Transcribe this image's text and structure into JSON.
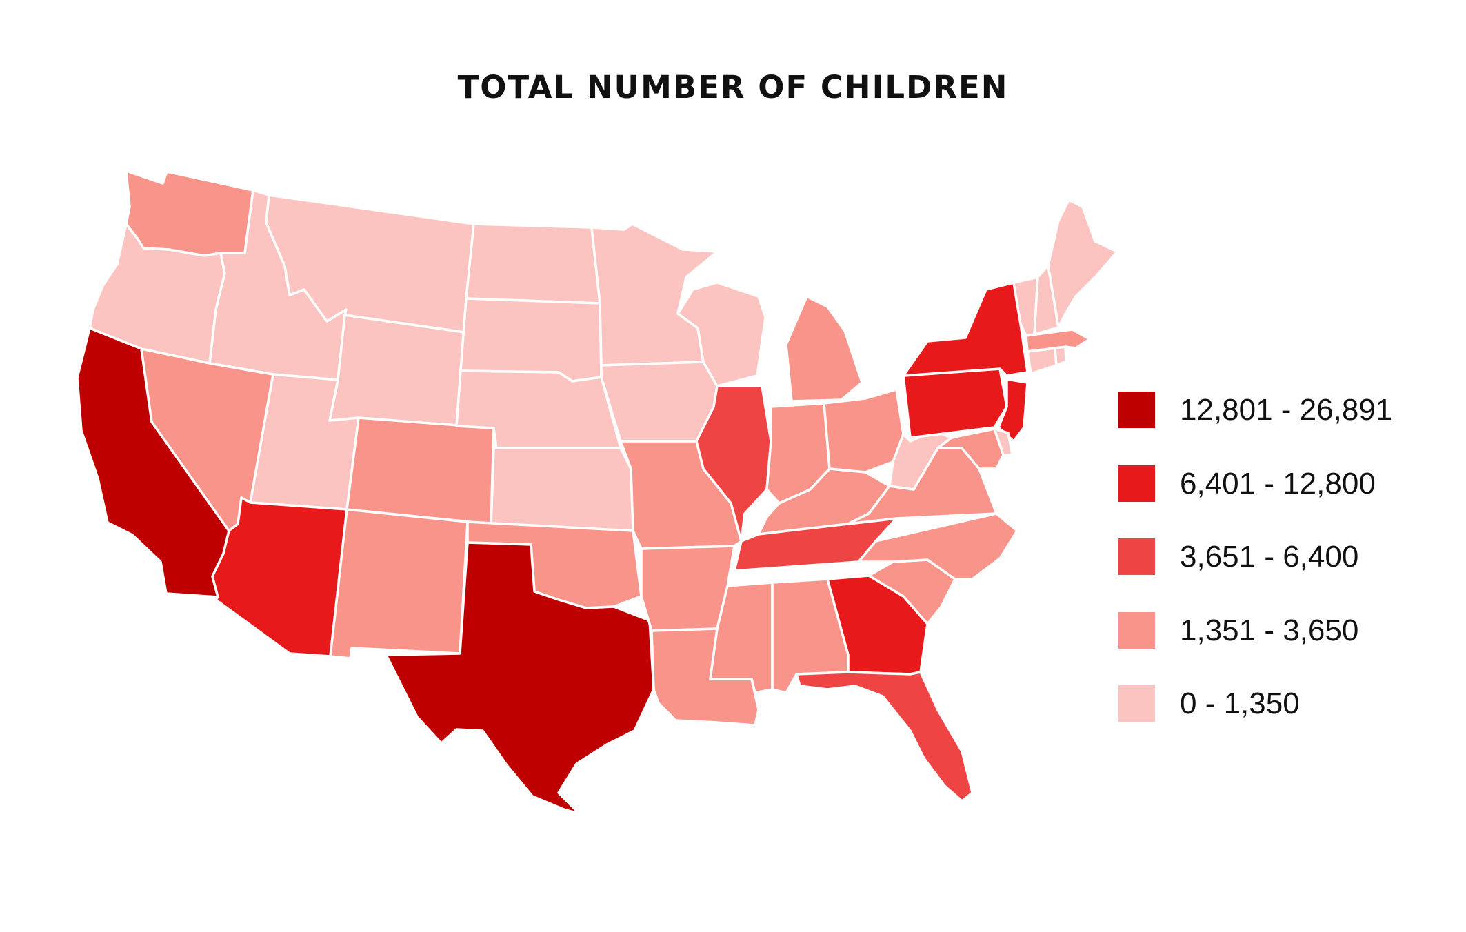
{
  "title": "TOTAL NUMBER OF CHILDREN",
  "colors": {
    "c1": "#bf0000",
    "c2": "#e8191b",
    "c3": "#ee4444",
    "c4": "#f9948a",
    "c5": "#fcc4c0",
    "border": "#ffffff"
  },
  "legend": [
    {
      "label": "12,801 - 26,891",
      "color": "#bf0000",
      "class": "c1"
    },
    {
      "label": "6,401 - 12,800",
      "color": "#e8191b",
      "class": "c2"
    },
    {
      "label": "3,651 - 6,400",
      "color": "#ee4444",
      "class": "c3"
    },
    {
      "label": "1,351 - 3,650",
      "color": "#f9948a",
      "class": "c4"
    },
    {
      "label": "0 - 1,350",
      "color": "#fcc4c0",
      "class": "c5"
    }
  ],
  "states": {
    "CA": "c1",
    "TX": "c1",
    "AZ": "c2",
    "NY": "c2",
    "PA": "c2",
    "NJ": "c2",
    "GA": "c2",
    "IL": "c3",
    "FL": "c3",
    "TN": "c3",
    "WA": "c4",
    "NV": "c4",
    "CO": "c4",
    "NM": "c4",
    "OK": "c4",
    "MO": "c4",
    "AR": "c4",
    "LA": "c4",
    "MS": "c4",
    "AL": "c4",
    "MI": "c4",
    "IN": "c4",
    "OH": "c4",
    "KY": "c4",
    "VA": "c4",
    "NC": "c4",
    "SC": "c4",
    "MA": "c4",
    "MD": "c4",
    "OR": "c5",
    "ID": "c5",
    "MT": "c5",
    "WY": "c5",
    "UT": "c5",
    "ND": "c5",
    "SD": "c5",
    "NE": "c5",
    "KS": "c5",
    "MN": "c5",
    "IA": "c5",
    "WI": "c5",
    "WV": "c5",
    "ME": "c5",
    "NH": "c5",
    "VT": "c5",
    "CT": "c5",
    "RI": "c5",
    "DE": "c5"
  }
}
